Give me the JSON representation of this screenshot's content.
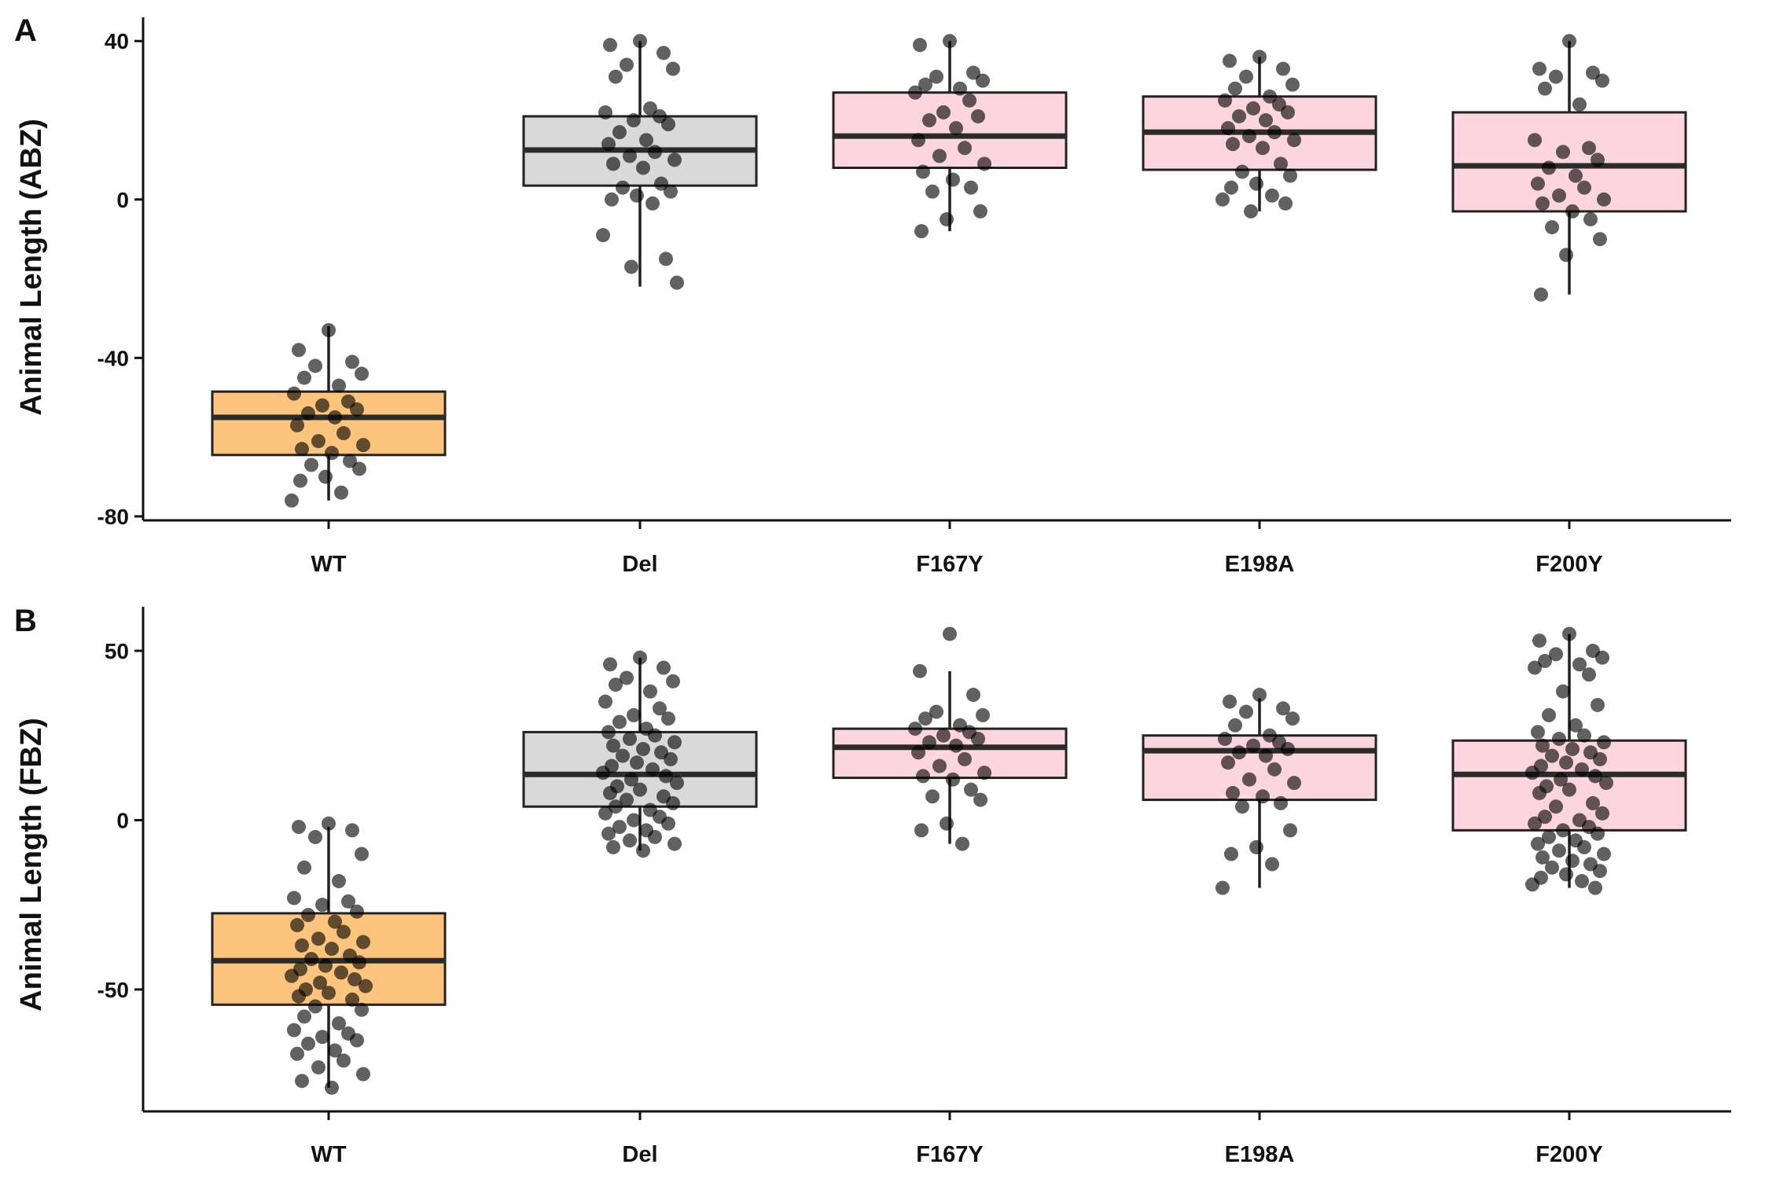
{
  "chart_data": [
    {
      "panel": "A",
      "type": "box",
      "ylabel": "Animal Length (ABZ)",
      "yticks": [
        40,
        0,
        -40,
        -80
      ],
      "ylim": [
        -81,
        46
      ],
      "categories": [
        "WT",
        "Del",
        "F167Y",
        "E198A",
        "F200Y"
      ],
      "colors": [
        "#FDC47D",
        "#D9D9D9",
        "#FDD5DE",
        "#FDD5DE",
        "#FDD5DE"
      ],
      "boxes": [
        {
          "name": "WT",
          "q1": -64.5,
          "median": -55,
          "q3": -48.5,
          "whisker_low": -76,
          "whisker_high": -32
        },
        {
          "name": "Del",
          "q1": 3.5,
          "median": 12.5,
          "q3": 21,
          "whisker_low": -22,
          "whisker_high": 40
        },
        {
          "name": "F167Y",
          "q1": 8,
          "median": 16,
          "q3": 27,
          "whisker_low": -8,
          "whisker_high": 40
        },
        {
          "name": "E198A",
          "q1": 7.5,
          "median": 17,
          "q3": 26,
          "whisker_low": -3,
          "whisker_high": 36
        },
        {
          "name": "F200Y",
          "q1": -3,
          "median": 8.5,
          "q3": 22,
          "whisker_low": -24,
          "whisker_high": 40
        }
      ],
      "points": [
        [
          -33,
          -38,
          -41,
          -42,
          -44,
          -45,
          -47,
          -49,
          -51,
          -52,
          -53,
          -54,
          -55,
          -57,
          -59,
          -61,
          -62,
          -63,
          -64,
          -66,
          -67,
          -68,
          -70,
          -71,
          -74,
          -76
        ],
        [
          40,
          39,
          37,
          34,
          33,
          31,
          23,
          22,
          21,
          20,
          19,
          17,
          15,
          14,
          12,
          11,
          10,
          9,
          8,
          4,
          3,
          2,
          1,
          0,
          -1,
          -9,
          -15,
          -17,
          -21
        ],
        [
          40,
          39,
          32,
          31,
          30,
          29,
          28,
          27,
          25,
          22,
          21,
          20,
          18,
          15,
          13,
          11,
          9,
          7,
          5,
          3,
          2,
          -3,
          -5,
          -8
        ],
        [
          36,
          35,
          33,
          31,
          29,
          28,
          26,
          25,
          24,
          23,
          22,
          21,
          20,
          18,
          17,
          16,
          15,
          14,
          13,
          9,
          7,
          6,
          4,
          3,
          1,
          0,
          -1,
          -3
        ],
        [
          40,
          33,
          32,
          31,
          30,
          28,
          24,
          15,
          13,
          12,
          10,
          8,
          6,
          4,
          3,
          1,
          0,
          -1,
          -3,
          -5,
          -7,
          -10,
          -14,
          -24
        ]
      ]
    },
    {
      "panel": "B",
      "type": "box",
      "ylabel": "Animal Length (FBZ)",
      "yticks": [
        50,
        0,
        -50
      ],
      "ylim": [
        -86,
        63
      ],
      "categories": [
        "WT",
        "Del",
        "F167Y",
        "E198A",
        "F200Y"
      ],
      "colors": [
        "#FDC47D",
        "#D9D9D9",
        "#FDD5DE",
        "#FDD5DE",
        "#FDD5DE"
      ],
      "boxes": [
        {
          "name": "WT",
          "q1": -54.5,
          "median": -41.5,
          "q3": -27.5,
          "whisker_low": -79,
          "whisker_high": -2
        },
        {
          "name": "Del",
          "q1": 4,
          "median": 13.5,
          "q3": 26,
          "whisker_low": -9,
          "whisker_high": 48
        },
        {
          "name": "F167Y",
          "q1": 12.5,
          "median": 21.5,
          "q3": 27,
          "whisker_low": -7,
          "whisker_high": 44
        },
        {
          "name": "E198A",
          "q1": 6,
          "median": 20.5,
          "q3": 25,
          "whisker_low": -20,
          "whisker_high": 36
        },
        {
          "name": "F200Y",
          "q1": -3,
          "median": 13.5,
          "q3": 23.5,
          "whisker_low": -20,
          "whisker_high": 55
        }
      ],
      "points": [
        [
          -1,
          -2,
          -3,
          -5,
          -10,
          -14,
          -18,
          -23,
          -24,
          -25,
          -27,
          -28,
          -30,
          -31,
          -33,
          -35,
          -36,
          -37,
          -38,
          -40,
          -41,
          -42,
          -43,
          -44,
          -45,
          -46,
          -47,
          -48,
          -49,
          -50,
          -51,
          -52,
          -53,
          -55,
          -56,
          -58,
          -60,
          -62,
          -63,
          -64,
          -65,
          -66,
          -68,
          -69,
          -71,
          -73,
          -75,
          -77,
          -79
        ],
        [
          48,
          46,
          45,
          42,
          41,
          40,
          38,
          35,
          33,
          31,
          30,
          29,
          27,
          26,
          25,
          24,
          23,
          22,
          21,
          20,
          19,
          18,
          17,
          16,
          15,
          14,
          13,
          12,
          11,
          10,
          9,
          8,
          7,
          6,
          5,
          4,
          3,
          2,
          1,
          0,
          -1,
          -2,
          -3,
          -4,
          -5,
          -6,
          -7,
          -8,
          -9
        ],
        [
          55,
          44,
          37,
          32,
          31,
          30,
          28,
          27,
          26,
          25,
          24,
          23,
          22,
          20,
          18,
          16,
          14,
          13,
          12,
          9,
          7,
          6,
          -1,
          -3,
          -7
        ],
        [
          37,
          35,
          33,
          32,
          30,
          28,
          25,
          24,
          23,
          22,
          21,
          20,
          19,
          17,
          15,
          12,
          11,
          8,
          7,
          5,
          4,
          -3,
          -8,
          -10,
          -13,
          -20
        ],
        [
          55,
          53,
          50,
          49,
          48,
          47,
          46,
          45,
          43,
          38,
          34,
          31,
          28,
          26,
          25,
          24,
          23,
          22,
          21,
          20,
          19,
          18,
          17,
          16,
          15,
          14,
          13,
          12,
          11,
          10,
          9,
          8,
          5,
          4,
          2,
          1,
          0,
          -1,
          -2,
          -3,
          -4,
          -5,
          -6,
          -7,
          -8,
          -9,
          -10,
          -11,
          -12,
          -13,
          -14,
          -15,
          -16,
          -17,
          -18,
          -19,
          -20
        ]
      ]
    }
  ]
}
